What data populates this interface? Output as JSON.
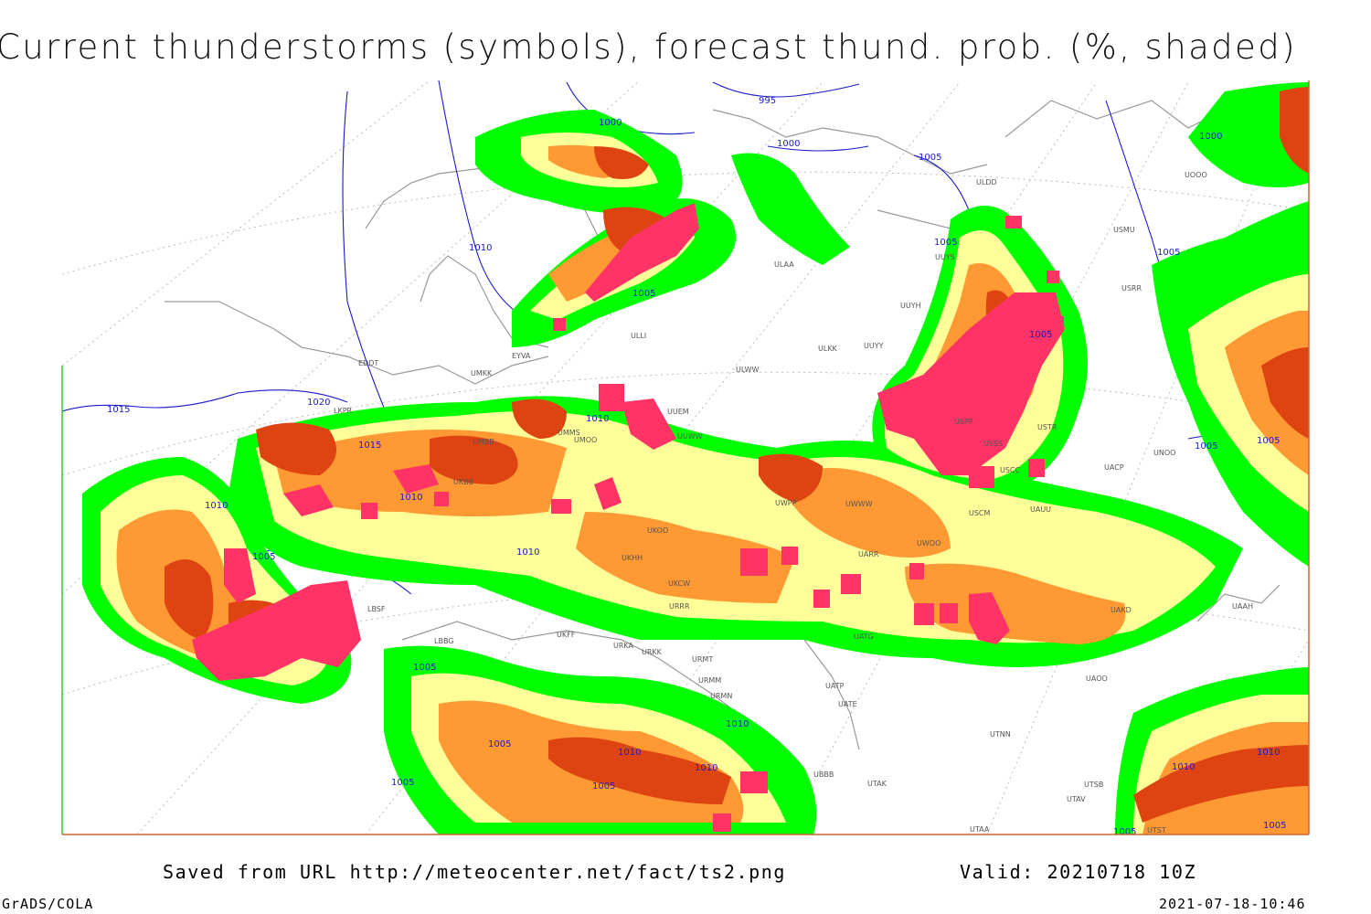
{
  "title": "Current thunderstorms (symbols), forecast thund. prob. (%, shaded)",
  "footer": {
    "saved": "Saved from URL http://meteocenter.net/fact/ts2.png",
    "valid": "Valid: 20210718 10Z",
    "software": "GrADS/COLA",
    "timestamp": "2021-07-18-10:46"
  },
  "colors": {
    "prob_low": "#00ff00",
    "prob_mid": "#ffff99",
    "prob_high": "#ff9933",
    "prob_very_high": "#dd4411",
    "storm_symbol": "#ff3366",
    "isobar": "#1a1acc",
    "coast": "#999999"
  },
  "isobars": [
    "995",
    "1000",
    "1000",
    "1000",
    "1005",
    "1005",
    "1005",
    "1005",
    "1005",
    "1005",
    "1005",
    "1005",
    "1005",
    "1005",
    "1005",
    "1005",
    "1005",
    "1005",
    "1010",
    "1010",
    "1010",
    "1010",
    "1010",
    "1010",
    "1010",
    "1010",
    "1010",
    "1010",
    "1015",
    "1015",
    "1020"
  ],
  "stations": [
    "ULAA",
    "UUYH",
    "ULKK",
    "UUYY",
    "ULWW",
    "UMKK",
    "EYVA",
    "ULLI",
    "EDDT",
    "LKPR",
    "UMMS",
    "UMOO",
    "UMBB",
    "UUEM",
    "UUWW",
    "UKBB",
    "USPP",
    "USSS",
    "USCC",
    "USTR",
    "UNOO",
    "UACP",
    "UAUU",
    "USCM",
    "UWOO",
    "UWWW",
    "UWPP",
    "URRR",
    "UKCW",
    "UKOO",
    "UKHH",
    "LBSF",
    "LBBG",
    "UKFF",
    "URKA",
    "URKK",
    "URMT",
    "URMM",
    "URMN",
    "UATG",
    "UARR",
    "UAKD",
    "UAAH",
    "UAOO",
    "UATP",
    "UATE",
    "UTNN",
    "UTAK",
    "UTSB",
    "UTAV",
    "UBBB",
    "UTAA",
    "UTST",
    "USMU",
    "USRR",
    "UUYS",
    "ULDD",
    "UOOO"
  ]
}
